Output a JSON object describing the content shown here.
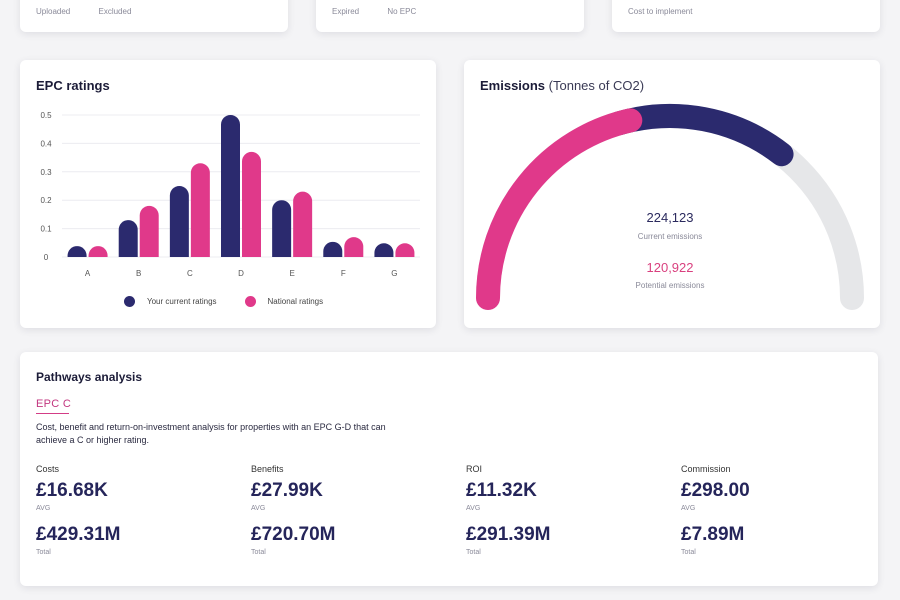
{
  "top_cards": [
    {
      "labels": [
        "Uploaded",
        "Excluded"
      ]
    },
    {
      "labels": [
        "Expired",
        "No EPC"
      ]
    },
    {
      "labels": [
        "Cost to implement"
      ]
    }
  ],
  "epc": {
    "title": "EPC ratings",
    "legend": [
      "Your current ratings",
      "National ratings"
    ]
  },
  "colors": {
    "current": "#2b2a6e",
    "national": "#e0398a",
    "track": "#e6e7e9"
  },
  "chart_data": {
    "type": "bar",
    "title": "EPC ratings",
    "categories": [
      "A",
      "B",
      "C",
      "D",
      "E",
      "F",
      "G"
    ],
    "series": [
      {
        "name": "Your current ratings",
        "values": [
          0.01,
          0.13,
          0.25,
          0.5,
          0.2,
          0.04,
          0.03
        ]
      },
      {
        "name": "National ratings",
        "values": [
          0.01,
          0.18,
          0.33,
          0.37,
          0.23,
          0.07,
          0.03
        ]
      }
    ],
    "yticks": [
      "0",
      "0.1",
      "0.2",
      "0.3",
      "0.4",
      "0.5"
    ],
    "ylim": [
      0,
      0.5
    ],
    "grid": true,
    "legend_position": "bottom"
  },
  "emissions": {
    "title": "Emissions",
    "subtitle": "(Tonnes of CO2)",
    "current_value": "224,123",
    "current_label": "Current emissions",
    "potential_value": "120,922",
    "potential_label": "Potential emissions",
    "pink_fraction": 0.43,
    "navy_fraction": 0.28
  },
  "pathways": {
    "title": "Pathways analysis",
    "subtitle": "EPC C",
    "description": "Cost, benefit and return-on-investment analysis for properties with an EPC G-D that can achieve a C or higher rating.",
    "metrics": [
      {
        "label": "Costs",
        "avg": "£16.68K",
        "avg_label": "AVG",
        "total": "£429.31M",
        "total_label": "Total"
      },
      {
        "label": "Benefits",
        "avg": "£27.99K",
        "avg_label": "AVG",
        "total": "£720.70M",
        "total_label": "Total"
      },
      {
        "label": "ROI",
        "avg": "£11.32K",
        "avg_label": "AVG",
        "total": "£291.39M",
        "total_label": "Total"
      },
      {
        "label": "Commission",
        "avg": "£298.00",
        "avg_label": "AVG",
        "total": "£7.89M",
        "total_label": "Total"
      }
    ]
  }
}
